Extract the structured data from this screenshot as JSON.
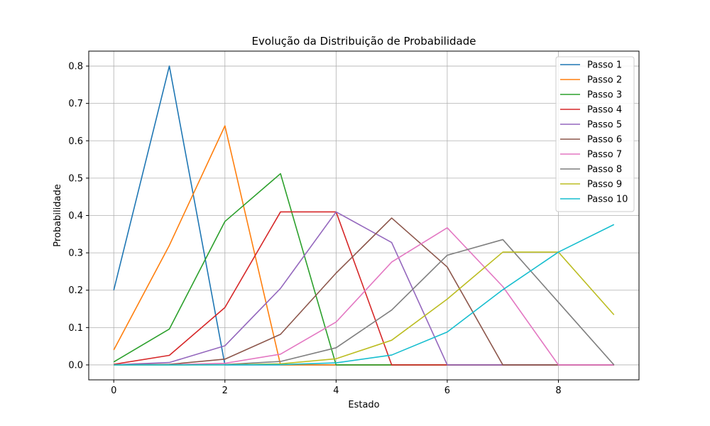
{
  "chart_data": {
    "type": "line",
    "title": "Evolução da Distribuição de Probabilidade",
    "xlabel": "Estado",
    "ylabel": "Probabilidade",
    "x": [
      0,
      1,
      2,
      3,
      4,
      5,
      6,
      7,
      8,
      9
    ],
    "xlim": [
      -0.45,
      9.45
    ],
    "ylim": [
      -0.04,
      0.84
    ],
    "xticks": [
      0,
      2,
      4,
      6,
      8
    ],
    "yticks": [
      0.0,
      0.1,
      0.2,
      0.3,
      0.4,
      0.5,
      0.6,
      0.7,
      0.8
    ],
    "xtick_labels": [
      "0",
      "2",
      "4",
      "6",
      "8"
    ],
    "ytick_labels": [
      "0.0",
      "0.1",
      "0.2",
      "0.3",
      "0.4",
      "0.5",
      "0.6",
      "0.7",
      "0.8"
    ],
    "grid": true,
    "legend_position": "top-right",
    "series": [
      {
        "name": "Passo 1",
        "color": "#1f77b4",
        "values": [
          0.2,
          0.8,
          0,
          0,
          0,
          0,
          0,
          0,
          0,
          0
        ]
      },
      {
        "name": "Passo 2",
        "color": "#ff7f0e",
        "values": [
          0.04,
          0.32,
          0.64,
          0,
          0,
          0,
          0,
          0,
          0,
          0
        ]
      },
      {
        "name": "Passo 3",
        "color": "#2ca02c",
        "values": [
          0.008,
          0.096,
          0.384,
          0.512,
          0,
          0,
          0,
          0,
          0,
          0
        ]
      },
      {
        "name": "Passo 4",
        "color": "#d62728",
        "values": [
          0.0016,
          0.0256,
          0.1536,
          0.4096,
          0.4096,
          0,
          0,
          0,
          0,
          0
        ]
      },
      {
        "name": "Passo 5",
        "color": "#9467bd",
        "values": [
          0.0003,
          0.0064,
          0.0512,
          0.2048,
          0.4096,
          0.3277,
          0,
          0,
          0,
          0
        ]
      },
      {
        "name": "Passo 6",
        "color": "#8c564b",
        "values": [
          0.0001,
          0.0015,
          0.0154,
          0.0819,
          0.2458,
          0.3932,
          0.2621,
          0,
          0,
          0
        ]
      },
      {
        "name": "Passo 7",
        "color": "#e377c2",
        "values": [
          0,
          0.0004,
          0.0043,
          0.0287,
          0.1147,
          0.2753,
          0.367,
          0.2097,
          0,
          0
        ]
      },
      {
        "name": "Passo 8",
        "color": "#7f7f7f",
        "values": [
          0,
          0.0001,
          0.0011,
          0.0092,
          0.0459,
          0.1468,
          0.2936,
          0.3355,
          0.1678,
          0
        ]
      },
      {
        "name": "Passo 9",
        "color": "#bcbd22",
        "values": [
          0,
          0,
          0.0003,
          0.0028,
          0.0165,
          0.0661,
          0.1762,
          0.302,
          0.302,
          0.1342
        ]
      },
      {
        "name": "Passo 10",
        "color": "#17becf",
        "values": [
          0,
          0,
          0.0001,
          0.0008,
          0.0055,
          0.0264,
          0.0881,
          0.2013,
          0.302,
          0.3758
        ]
      }
    ]
  }
}
